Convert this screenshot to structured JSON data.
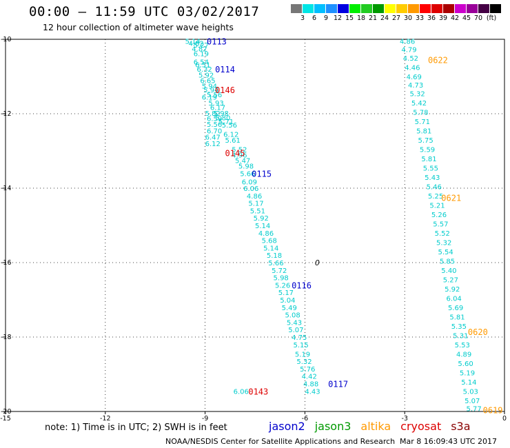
{
  "title": "00:00 – 11:59 UTC 03/02/2017",
  "subtitle": "12 hour collection of altimeter wave heights",
  "scale": {
    "unit": "(ft)",
    "colors": [
      "#777777",
      "#00e5e5",
      "#00bfff",
      "#1e90ff",
      "#0000e0",
      "#00ee00",
      "#22cc22",
      "#009900",
      "#ffff00",
      "#ffcc00",
      "#ff9900",
      "#ff0000",
      "#dd0000",
      "#aa0000",
      "#cc00cc",
      "#990099",
      "#440044",
      "#000000"
    ],
    "labels": [
      "3",
      "6",
      "9",
      "12",
      "15",
      "18",
      "21",
      "24",
      "27",
      "30",
      "33",
      "36",
      "39",
      "42",
      "45",
      "70"
    ]
  },
  "note": "note: 1) Time is in UTC; 2) SWH is in feet",
  "legend": [
    {
      "name": "jason2",
      "color": "#0000cc"
    },
    {
      "name": "jason3",
      "color": "#009900"
    },
    {
      "name": "altika",
      "color": "#ff9900"
    },
    {
      "name": "cryosat",
      "color": "#dd0000"
    },
    {
      "name": "s3a",
      "color": "#880000"
    }
  ],
  "credit": "NOAA/NESDIS Center for Satellite Applications and Research",
  "timestamp": "Mar  8 16:09:43 UTC 2017",
  "chart_data": {
    "type": "scatter",
    "xlim": [
      -15,
      0
    ],
    "ylim": [
      -20,
      -10
    ],
    "x_ticks": [
      "-15",
      "-12",
      "-9",
      "-6",
      "-3",
      "0"
    ],
    "y_ticks": [
      "-10",
      "-12",
      "-14",
      "-16",
      "-18",
      "-20"
    ],
    "grid": "dotted",
    "marker": {
      "label": "0",
      "x": -5.7,
      "y": -16.0
    },
    "tracks": [
      {
        "name": "jason2",
        "color": "#00cccc",
        "points": [
          {
            "x": -9.6,
            "y": -10.05,
            "v": "5.14"
          },
          {
            "x": -9.5,
            "y": -10.1,
            "v": "4.82"
          },
          {
            "x": -9.35,
            "y": -10.15,
            "v": "5.27"
          },
          {
            "x": -9.4,
            "y": -10.25,
            "v": "4.82"
          },
          {
            "x": -9.35,
            "y": -10.38,
            "v": "6.19"
          },
          {
            "x": -9.35,
            "y": -10.6,
            "v": "6.54"
          },
          {
            "x": -9.3,
            "y": -10.68,
            "v": "6.51"
          },
          {
            "x": -9.25,
            "y": -10.8,
            "v": "6.32"
          },
          {
            "x": -9.2,
            "y": -10.95,
            "v": "5.92"
          },
          {
            "x": -9.15,
            "y": -11.1,
            "v": "6.65"
          },
          {
            "x": -9.1,
            "y": -11.25,
            "v": "5.94"
          },
          {
            "x": -9.05,
            "y": -11.35,
            "v": "5.94"
          },
          {
            "x": -8.95,
            "y": -11.48,
            "v": "5.56"
          },
          {
            "x": -9.1,
            "y": -11.55,
            "v": "6.19"
          },
          {
            "x": -8.9,
            "y": -11.7,
            "v": "5.93"
          },
          {
            "x": -8.85,
            "y": -11.82,
            "v": "6.17"
          },
          {
            "x": -8.75,
            "y": -11.98,
            "v": "5.98"
          },
          {
            "x": -9.0,
            "y": -11.98,
            "v": "5.82"
          },
          {
            "x": -8.7,
            "y": -12.1,
            "v": "5.80"
          },
          {
            "x": -8.95,
            "y": -12.12,
            "v": "6.59"
          },
          {
            "x": -8.6,
            "y": -12.2,
            "v": "5.71"
          },
          {
            "x": -8.95,
            "y": -12.28,
            "v": "5.56"
          },
          {
            "x": -8.5,
            "y": -12.3,
            "v": "5.56"
          },
          {
            "x": -8.95,
            "y": -12.45,
            "v": "6.70"
          },
          {
            "x": -8.45,
            "y": -12.55,
            "v": "6.12"
          },
          {
            "x": -9.0,
            "y": -12.62,
            "v": "6.47"
          },
          {
            "x": -8.4,
            "y": -12.7,
            "v": "5.61"
          },
          {
            "x": -9.0,
            "y": -12.8,
            "v": "6.12"
          },
          {
            "x": -8.2,
            "y": -12.95,
            "v": "5.52"
          },
          {
            "x": -8.2,
            "y": -13.1,
            "v": "4.96"
          },
          {
            "x": -8.1,
            "y": -13.25,
            "v": "5.47"
          },
          {
            "x": -8.0,
            "y": -13.4,
            "v": "5.98"
          },
          {
            "x": -7.95,
            "y": -13.6,
            "v": "5.66"
          },
          {
            "x": -7.9,
            "y": -13.82,
            "v": "6.09"
          },
          {
            "x": -7.85,
            "y": -14.0,
            "v": "6.06"
          },
          {
            "x": -7.75,
            "y": -14.2,
            "v": "4.86"
          },
          {
            "x": -7.7,
            "y": -14.4,
            "v": "5.17"
          },
          {
            "x": -7.65,
            "y": -14.6,
            "v": "5.51"
          },
          {
            "x": -7.55,
            "y": -14.8,
            "v": "5.92"
          },
          {
            "x": -7.5,
            "y": -15.0,
            "v": "5.14"
          },
          {
            "x": -7.4,
            "y": -15.2,
            "v": "4.86"
          },
          {
            "x": -7.3,
            "y": -15.4,
            "v": "5.68"
          },
          {
            "x": -7.25,
            "y": -15.6,
            "v": "5.14"
          },
          {
            "x": -7.15,
            "y": -15.8,
            "v": "5.18"
          },
          {
            "x": -7.1,
            "y": -16.0,
            "v": "5.66"
          },
          {
            "x": -7.0,
            "y": -16.2,
            "v": "5.72"
          },
          {
            "x": -6.95,
            "y": -16.4,
            "v": "5.98"
          },
          {
            "x": -6.9,
            "y": -16.6,
            "v": "5.26"
          },
          {
            "x": -6.8,
            "y": -16.8,
            "v": "5.17"
          },
          {
            "x": -6.75,
            "y": -17.0,
            "v": "5.04"
          },
          {
            "x": -6.7,
            "y": -17.2,
            "v": "5.49"
          },
          {
            "x": -6.6,
            "y": -17.4,
            "v": "5.08"
          },
          {
            "x": -6.55,
            "y": -17.6,
            "v": "5.43"
          },
          {
            "x": -6.5,
            "y": -17.8,
            "v": "5.07"
          },
          {
            "x": -6.4,
            "y": -18.0,
            "v": "4.75"
          },
          {
            "x": -6.35,
            "y": -18.2,
            "v": "5.15"
          },
          {
            "x": -6.3,
            "y": -18.45,
            "v": "5.19"
          },
          {
            "x": -6.25,
            "y": -18.65,
            "v": "5.32"
          },
          {
            "x": -6.15,
            "y": -18.85,
            "v": "5.76"
          },
          {
            "x": -6.1,
            "y": -19.05,
            "v": "4.42"
          },
          {
            "x": -6.05,
            "y": -19.25,
            "v": "4.88"
          },
          {
            "x": -6.0,
            "y": -19.45,
            "v": "4.43"
          },
          {
            "x": -8.15,
            "y": -19.45,
            "v": "6.06"
          }
        ]
      },
      {
        "name": "altika",
        "color": "#00cccc",
        "points": [
          {
            "x": -3.15,
            "y": -10.05,
            "v": "4.86"
          },
          {
            "x": -3.1,
            "y": -10.27,
            "v": "4.79"
          },
          {
            "x": -3.05,
            "y": -10.5,
            "v": "4.52"
          },
          {
            "x": -3.0,
            "y": -10.75,
            "v": "4.46"
          },
          {
            "x": -2.95,
            "y": -11.0,
            "v": "4.69"
          },
          {
            "x": -2.9,
            "y": -11.22,
            "v": "4.73"
          },
          {
            "x": -2.85,
            "y": -11.45,
            "v": "5.32"
          },
          {
            "x": -2.8,
            "y": -11.7,
            "v": "5.42"
          },
          {
            "x": -2.75,
            "y": -11.95,
            "v": "5.78"
          },
          {
            "x": -2.7,
            "y": -12.2,
            "v": "5.71"
          },
          {
            "x": -2.65,
            "y": -12.45,
            "v": "5.81"
          },
          {
            "x": -2.6,
            "y": -12.7,
            "v": "5.75"
          },
          {
            "x": -2.55,
            "y": -12.95,
            "v": "5.59"
          },
          {
            "x": -2.5,
            "y": -13.2,
            "v": "5.81"
          },
          {
            "x": -2.45,
            "y": -13.45,
            "v": "5.55"
          },
          {
            "x": -2.4,
            "y": -13.7,
            "v": "5.43"
          },
          {
            "x": -2.35,
            "y": -13.95,
            "v": "5.46"
          },
          {
            "x": -2.3,
            "y": -14.2,
            "v": "5.25"
          },
          {
            "x": -2.25,
            "y": -14.45,
            "v": "5.21"
          },
          {
            "x": -2.2,
            "y": -14.7,
            "v": "5.26"
          },
          {
            "x": -2.15,
            "y": -14.95,
            "v": "5.57"
          },
          {
            "x": -2.1,
            "y": -15.2,
            "v": "5.52"
          },
          {
            "x": -2.05,
            "y": -15.45,
            "v": "5.32"
          },
          {
            "x": -2.0,
            "y": -15.7,
            "v": "5.54"
          },
          {
            "x": -1.95,
            "y": -15.95,
            "v": "5.85"
          },
          {
            "x": -1.9,
            "y": -16.2,
            "v": "5.40"
          },
          {
            "x": -1.85,
            "y": -16.45,
            "v": "5.27"
          },
          {
            "x": -1.8,
            "y": -16.7,
            "v": "5.92"
          },
          {
            "x": -1.75,
            "y": -16.95,
            "v": "6.04"
          },
          {
            "x": -1.7,
            "y": -17.2,
            "v": "5.69"
          },
          {
            "x": -1.65,
            "y": -17.45,
            "v": "5.81"
          },
          {
            "x": -1.6,
            "y": -17.7,
            "v": "5.35"
          },
          {
            "x": -1.55,
            "y": -17.95,
            "v": "5.31"
          },
          {
            "x": -1.5,
            "y": -18.2,
            "v": "5.53"
          },
          {
            "x": -1.45,
            "y": -18.45,
            "v": "4.89"
          },
          {
            "x": -1.4,
            "y": -18.7,
            "v": "5.60"
          },
          {
            "x": -1.35,
            "y": -18.95,
            "v": "5.19"
          },
          {
            "x": -1.3,
            "y": -19.2,
            "v": "5.14"
          },
          {
            "x": -1.25,
            "y": -19.45,
            "v": "5.03"
          },
          {
            "x": -1.2,
            "y": -19.7,
            "v": "5.07"
          },
          {
            "x": -1.15,
            "y": -19.92,
            "v": "5.77"
          }
        ]
      }
    ],
    "time_labels": [
      {
        "text": "0113",
        "x": -8.95,
        "y": -10.05,
        "color": "#0000cc"
      },
      {
        "text": "0114",
        "x": -8.7,
        "y": -10.8,
        "color": "#0000cc"
      },
      {
        "text": "0146",
        "x": -8.7,
        "y": -11.35,
        "color": "#dd0000"
      },
      {
        "text": "0145",
        "x": -8.4,
        "y": -13.05,
        "color": "#dd0000"
      },
      {
        "text": "0115",
        "x": -7.6,
        "y": -13.6,
        "color": "#0000cc"
      },
      {
        "text": "0116",
        "x": -6.4,
        "y": -16.6,
        "color": "#0000cc"
      },
      {
        "text": "0117",
        "x": -5.3,
        "y": -19.25,
        "color": "#0000cc"
      },
      {
        "text": "0143",
        "x": -7.7,
        "y": -19.45,
        "color": "#dd0000"
      },
      {
        "text": "0622",
        "x": -2.3,
        "y": -10.55,
        "color": "#ff9900"
      },
      {
        "text": "0621",
        "x": -1.9,
        "y": -14.25,
        "color": "#ff9900"
      },
      {
        "text": "0620",
        "x": -1.1,
        "y": -17.85,
        "color": "#ff9900"
      },
      {
        "text": "0619",
        "x": -0.65,
        "y": -19.95,
        "color": "#ff9900"
      }
    ]
  }
}
